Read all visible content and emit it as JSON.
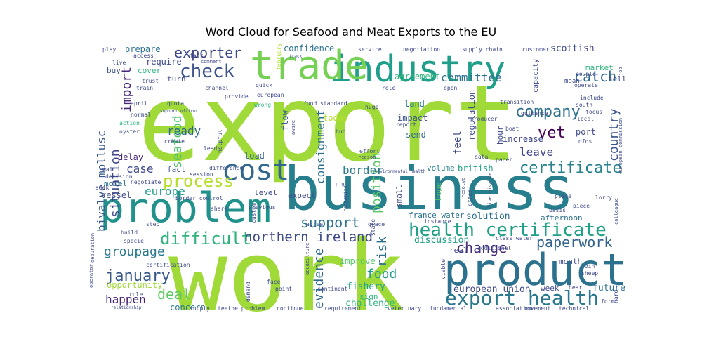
{
  "chart_data": {
    "type": "wordcloud",
    "title": "Word Cloud for Seafood and Meat Exports to the EU",
    "palette": "viridis",
    "words": [
      {
        "text": "export",
        "color": "#a0da39"
      },
      {
        "text": "work",
        "color": "#a0da39"
      },
      {
        "text": "business",
        "color": "#277f8e"
      },
      {
        "text": "product",
        "color": "#2c728e"
      },
      {
        "text": "problem",
        "color": "#21918c"
      },
      {
        "text": "industry",
        "color": "#1f9e89"
      },
      {
        "text": "trade",
        "color": "#75d054"
      },
      {
        "text": "cost",
        "color": "#31688e"
      },
      {
        "text": "health certificate",
        "color": "#1fa187"
      },
      {
        "text": "export health",
        "color": "#2a788e"
      },
      {
        "text": "check",
        "color": "#3b528b"
      },
      {
        "text": "process",
        "color": "#b5de2b"
      },
      {
        "text": "difficult",
        "color": "#2fb47c"
      },
      {
        "text": "certificate",
        "color": "#26828e"
      },
      {
        "text": "company",
        "color": "#2d718e"
      },
      {
        "text": "vet",
        "color": "#440154"
      },
      {
        "text": "exporter",
        "color": "#3e4989"
      },
      {
        "text": "catch",
        "color": "#31688e"
      },
      {
        "text": "change",
        "color": "#472d7b"
      },
      {
        "text": "paperwork",
        "color": "#33638d"
      },
      {
        "text": "january",
        "color": "#38588c"
      },
      {
        "text": "northern ireland",
        "color": "#3e4989"
      },
      {
        "text": "support",
        "color": "#2c728e"
      },
      {
        "text": "position",
        "color": "#56c667"
      },
      {
        "text": "bivalve mollusc",
        "color": "#38588c"
      },
      {
        "text": "situation",
        "color": "#3f4788"
      },
      {
        "text": "import",
        "color": "#482878"
      },
      {
        "text": "seafood",
        "color": "#4ec36b"
      },
      {
        "text": "country",
        "color": "#3b528b"
      },
      {
        "text": "groupage",
        "color": "#2a788e"
      },
      {
        "text": "evidence",
        "color": "#31688e"
      },
      {
        "text": "deal",
        "color": "#5ec962"
      },
      {
        "text": "happen",
        "color": "#482475"
      },
      {
        "text": "food",
        "color": "#1f9e89"
      },
      {
        "text": "risk",
        "color": "#2d708e"
      },
      {
        "text": "europe",
        "color": "#1f9e89"
      },
      {
        "text": "border",
        "color": "#287c8e"
      },
      {
        "text": "consignment",
        "color": "#2d708e"
      },
      {
        "text": "committee",
        "color": "#2c728e"
      },
      {
        "text": "leave",
        "color": "#3f4788"
      },
      {
        "text": "ready",
        "color": "#31688e"
      },
      {
        "text": "case",
        "color": "#3e4989"
      },
      {
        "text": "european union",
        "color": "#3e4989"
      },
      {
        "text": "fishery",
        "color": "#1fa187"
      },
      {
        "text": "challenge",
        "color": "#2fb47c"
      },
      {
        "text": "discussion",
        "color": "#1f9e89"
      },
      {
        "text": "solution",
        "color": "#2d708e"
      },
      {
        "text": "future",
        "color": "#2d708e"
      },
      {
        "text": "opportunity",
        "color": "#a0da39"
      },
      {
        "text": "concern",
        "color": "#2a788e"
      },
      {
        "text": "improve",
        "color": "#56c667"
      },
      {
        "text": "feel",
        "color": "#3e4989"
      },
      {
        "text": "scottish",
        "color": "#3e4989"
      },
      {
        "text": "prepare",
        "color": "#2c728e"
      },
      {
        "text": "require",
        "color": "#3e4989"
      },
      {
        "text": "confidence",
        "color": "#2c728e"
      },
      {
        "text": "agreement",
        "color": "#2fb47c"
      },
      {
        "text": "flow",
        "color": "#38588c"
      },
      {
        "text": "impact",
        "color": "#3b528b"
      },
      {
        "text": "today",
        "color": "#b5de2b"
      },
      {
        "text": "land",
        "color": "#2a788e"
      },
      {
        "text": "send",
        "color": "#31688e"
      },
      {
        "text": "regulation",
        "color": "#3e4989"
      },
      {
        "text": "increase",
        "color": "#3f4788"
      },
      {
        "text": "hour",
        "color": "#3e4989"
      },
      {
        "text": "port",
        "color": "#3e4989"
      },
      {
        "text": "british",
        "color": "#1fa187"
      },
      {
        "text": "volume",
        "color": "#26828e"
      },
      {
        "text": "load",
        "color": "#33638d"
      },
      {
        "text": "delay",
        "color": "#482878"
      },
      {
        "text": "vessel",
        "color": "#3f4788"
      },
      {
        "text": "model",
        "color": "#2c728e"
      },
      {
        "text": "fact",
        "color": "#3b528b"
      },
      {
        "text": "level",
        "color": "#3e4989"
      },
      {
        "text": "expect",
        "color": "#3e4989"
      },
      {
        "text": "france water",
        "color": "#2c728e"
      },
      {
        "text": "afternoon",
        "color": "#2d708e"
      },
      {
        "text": "small",
        "color": "#3e4989"
      },
      {
        "text": "hope",
        "color": "#4ec36b"
      },
      {
        "text": "real",
        "color": "#3e4989"
      },
      {
        "text": "month",
        "color": "#3e4989"
      },
      {
        "text": "week",
        "color": "#3e4989"
      },
      {
        "text": "sign",
        "color": "#2fb47c"
      },
      {
        "text": "buy",
        "color": "#3b528b"
      },
      {
        "text": "cover",
        "color": "#2fb47c"
      },
      {
        "text": "turn",
        "color": "#3e4989"
      },
      {
        "text": "market",
        "color": "#2fb47c"
      },
      {
        "text": "sell",
        "color": "#3e4989"
      },
      {
        "text": "capacity",
        "color": "#3e4989"
      },
      {
        "text": "mean",
        "color": "#3e4989"
      },
      {
        "text": "customer",
        "color": "#3e4989"
      },
      {
        "text": "supply chain",
        "color": "#3e4989"
      },
      {
        "text": "negotiation",
        "color": "#3e4989"
      },
      {
        "text": "service",
        "color": "#3e4989"
      },
      {
        "text": "february",
        "color": "#b5de2b"
      },
      {
        "text": "access",
        "color": "#3e4989"
      },
      {
        "text": "play",
        "color": "#3e4989"
      },
      {
        "text": "live",
        "color": "#3e4989"
      },
      {
        "text": "quick",
        "color": "#3e4989"
      },
      {
        "text": "provide",
        "color": "#3e4989"
      },
      {
        "text": "european",
        "color": "#3e4989"
      },
      {
        "text": "wrong",
        "color": "#2fb47c"
      },
      {
        "text": "food standard",
        "color": "#3e4989"
      },
      {
        "text": "role",
        "color": "#3e4989"
      },
      {
        "text": "open",
        "color": "#3e4989"
      },
      {
        "text": "channel",
        "color": "#3e4989"
      },
      {
        "text": "trust",
        "color": "#3e4989"
      },
      {
        "text": "train",
        "color": "#3e4989"
      },
      {
        "text": "quota",
        "color": "#3e4989"
      },
      {
        "text": "support officer",
        "color": "#3e4989"
      },
      {
        "text": "april",
        "color": "#3e4989"
      },
      {
        "text": "normal",
        "color": "#3e4989"
      },
      {
        "text": "action",
        "color": "#2fb47c"
      },
      {
        "text": "oyster",
        "color": "#3e4989"
      },
      {
        "text": "create",
        "color": "#3e4989"
      },
      {
        "text": "helpful",
        "color": "#3e4989"
      },
      {
        "text": "lead",
        "color": "#3e4989"
      },
      {
        "text": "difference",
        "color": "#3e4989"
      },
      {
        "text": "session",
        "color": "#3e4989"
      },
      {
        "text": "wait",
        "color": "#3e4989"
      },
      {
        "text": "decision",
        "color": "#3e4989"
      },
      {
        "text": "negotiate",
        "color": "#3e4989"
      },
      {
        "text": "seek",
        "color": "#3e4989"
      },
      {
        "text": "share",
        "color": "#3e4989"
      },
      {
        "text": "border control",
        "color": "#3e4989"
      },
      {
        "text": "previous",
        "color": "#3e4989"
      },
      {
        "text": "step",
        "color": "#3e4989"
      },
      {
        "text": "build",
        "color": "#3e4989"
      },
      {
        "text": "specie",
        "color": "#3e4989"
      },
      {
        "text": "depuration",
        "color": "#3e4989"
      },
      {
        "text": "certification",
        "color": "#3e4989"
      },
      {
        "text": "operator",
        "color": "#3e4989"
      },
      {
        "text": "rule",
        "color": "#3e4989"
      },
      {
        "text": "face",
        "color": "#3e4989"
      },
      {
        "text": "point",
        "color": "#3e4989"
      },
      {
        "text": "continent",
        "color": "#3e4989"
      },
      {
        "text": "demand",
        "color": "#3e4989"
      },
      {
        "text": "custom",
        "color": "#3e4989"
      },
      {
        "text": "aquaculture",
        "color": "#3e4989"
      },
      {
        "text": "agree",
        "color": "#3e4989"
      },
      {
        "text": "supply",
        "color": "#3e4989"
      },
      {
        "text": "teethe problem",
        "color": "#3e4989"
      },
      {
        "text": "continue",
        "color": "#3e4989"
      },
      {
        "text": "requirement",
        "color": "#3e4989"
      },
      {
        "text": "veterinary",
        "color": "#3e4989"
      },
      {
        "text": "fundamental",
        "color": "#3e4989"
      },
      {
        "text": "association",
        "color": "#3e4989"
      },
      {
        "text": "movement",
        "color": "#3e4989"
      },
      {
        "text": "technical",
        "color": "#3e4989"
      },
      {
        "text": "viable",
        "color": "#3e4989"
      },
      {
        "text": "offer",
        "color": "#3e4989"
      },
      {
        "text": "additional",
        "color": "#3e4989"
      },
      {
        "text": "join",
        "color": "#3e4989"
      },
      {
        "text": "sheep",
        "color": "#3e4989"
      },
      {
        "text": "hear",
        "color": "#3e4989"
      },
      {
        "text": "form",
        "color": "#3e4989"
      },
      {
        "text": "hard",
        "color": "#3e4989"
      },
      {
        "text": "lorry",
        "color": "#3e4989"
      },
      {
        "text": "piece",
        "color": "#3e4989"
      },
      {
        "text": "basis",
        "color": "#3e4989"
      },
      {
        "text": "place",
        "color": "#3e4989"
      },
      {
        "text": "resolve",
        "color": "#3e4989"
      },
      {
        "text": "class water",
        "color": "#3e4989"
      },
      {
        "text": "instance",
        "color": "#3e4989"
      },
      {
        "text": "grace",
        "color": "#3e4989"
      },
      {
        "text": "state",
        "color": "#3e4989"
      },
      {
        "text": "recognise",
        "color": "#3e4989"
      },
      {
        "text": "pig",
        "color": "#3e4989"
      },
      {
        "text": "environmental health",
        "color": "#3e4989"
      },
      {
        "text": "hub",
        "color": "#3e4989"
      },
      {
        "text": "aware",
        "color": "#3e4989"
      },
      {
        "text": "effort",
        "color": "#3e4989"
      },
      {
        "text": "reason",
        "color": "#3e4989"
      },
      {
        "text": "huge",
        "color": "#3e4989"
      },
      {
        "text": "report",
        "color": "#3e4989"
      },
      {
        "text": "producer",
        "color": "#3e4989"
      },
      {
        "text": "paper",
        "color": "#3e4989"
      },
      {
        "text": "data",
        "color": "#3e4989"
      },
      {
        "text": "transition",
        "color": "#3e4989"
      },
      {
        "text": "boat",
        "color": "#3e4989"
      },
      {
        "text": "guidance",
        "color": "#3e4989"
      },
      {
        "text": "live bivalve",
        "color": "#3e4989"
      },
      {
        "text": "dfds",
        "color": "#3e4989"
      },
      {
        "text": "european commission",
        "color": "#3e4989"
      },
      {
        "text": "local",
        "color": "#3e4989"
      },
      {
        "text": "focus",
        "color": "#3e4989"
      },
      {
        "text": "south",
        "color": "#3e4989"
      },
      {
        "text": "include",
        "color": "#3e4989"
      },
      {
        "text": "operate",
        "color": "#3e4989"
      },
      {
        "text": "couple",
        "color": "#3e4989"
      },
      {
        "text": "job",
        "color": "#3e4989"
      },
      {
        "text": "colleague",
        "color": "#3e4989"
      },
      {
        "text": "relationship",
        "color": "#3e4989"
      },
      {
        "text": "fair",
        "color": "#3e4989"
      },
      {
        "text": "comment",
        "color": "#3e4989"
      },
      {
        "text": "track",
        "color": "#3e4989"
      }
    ]
  }
}
